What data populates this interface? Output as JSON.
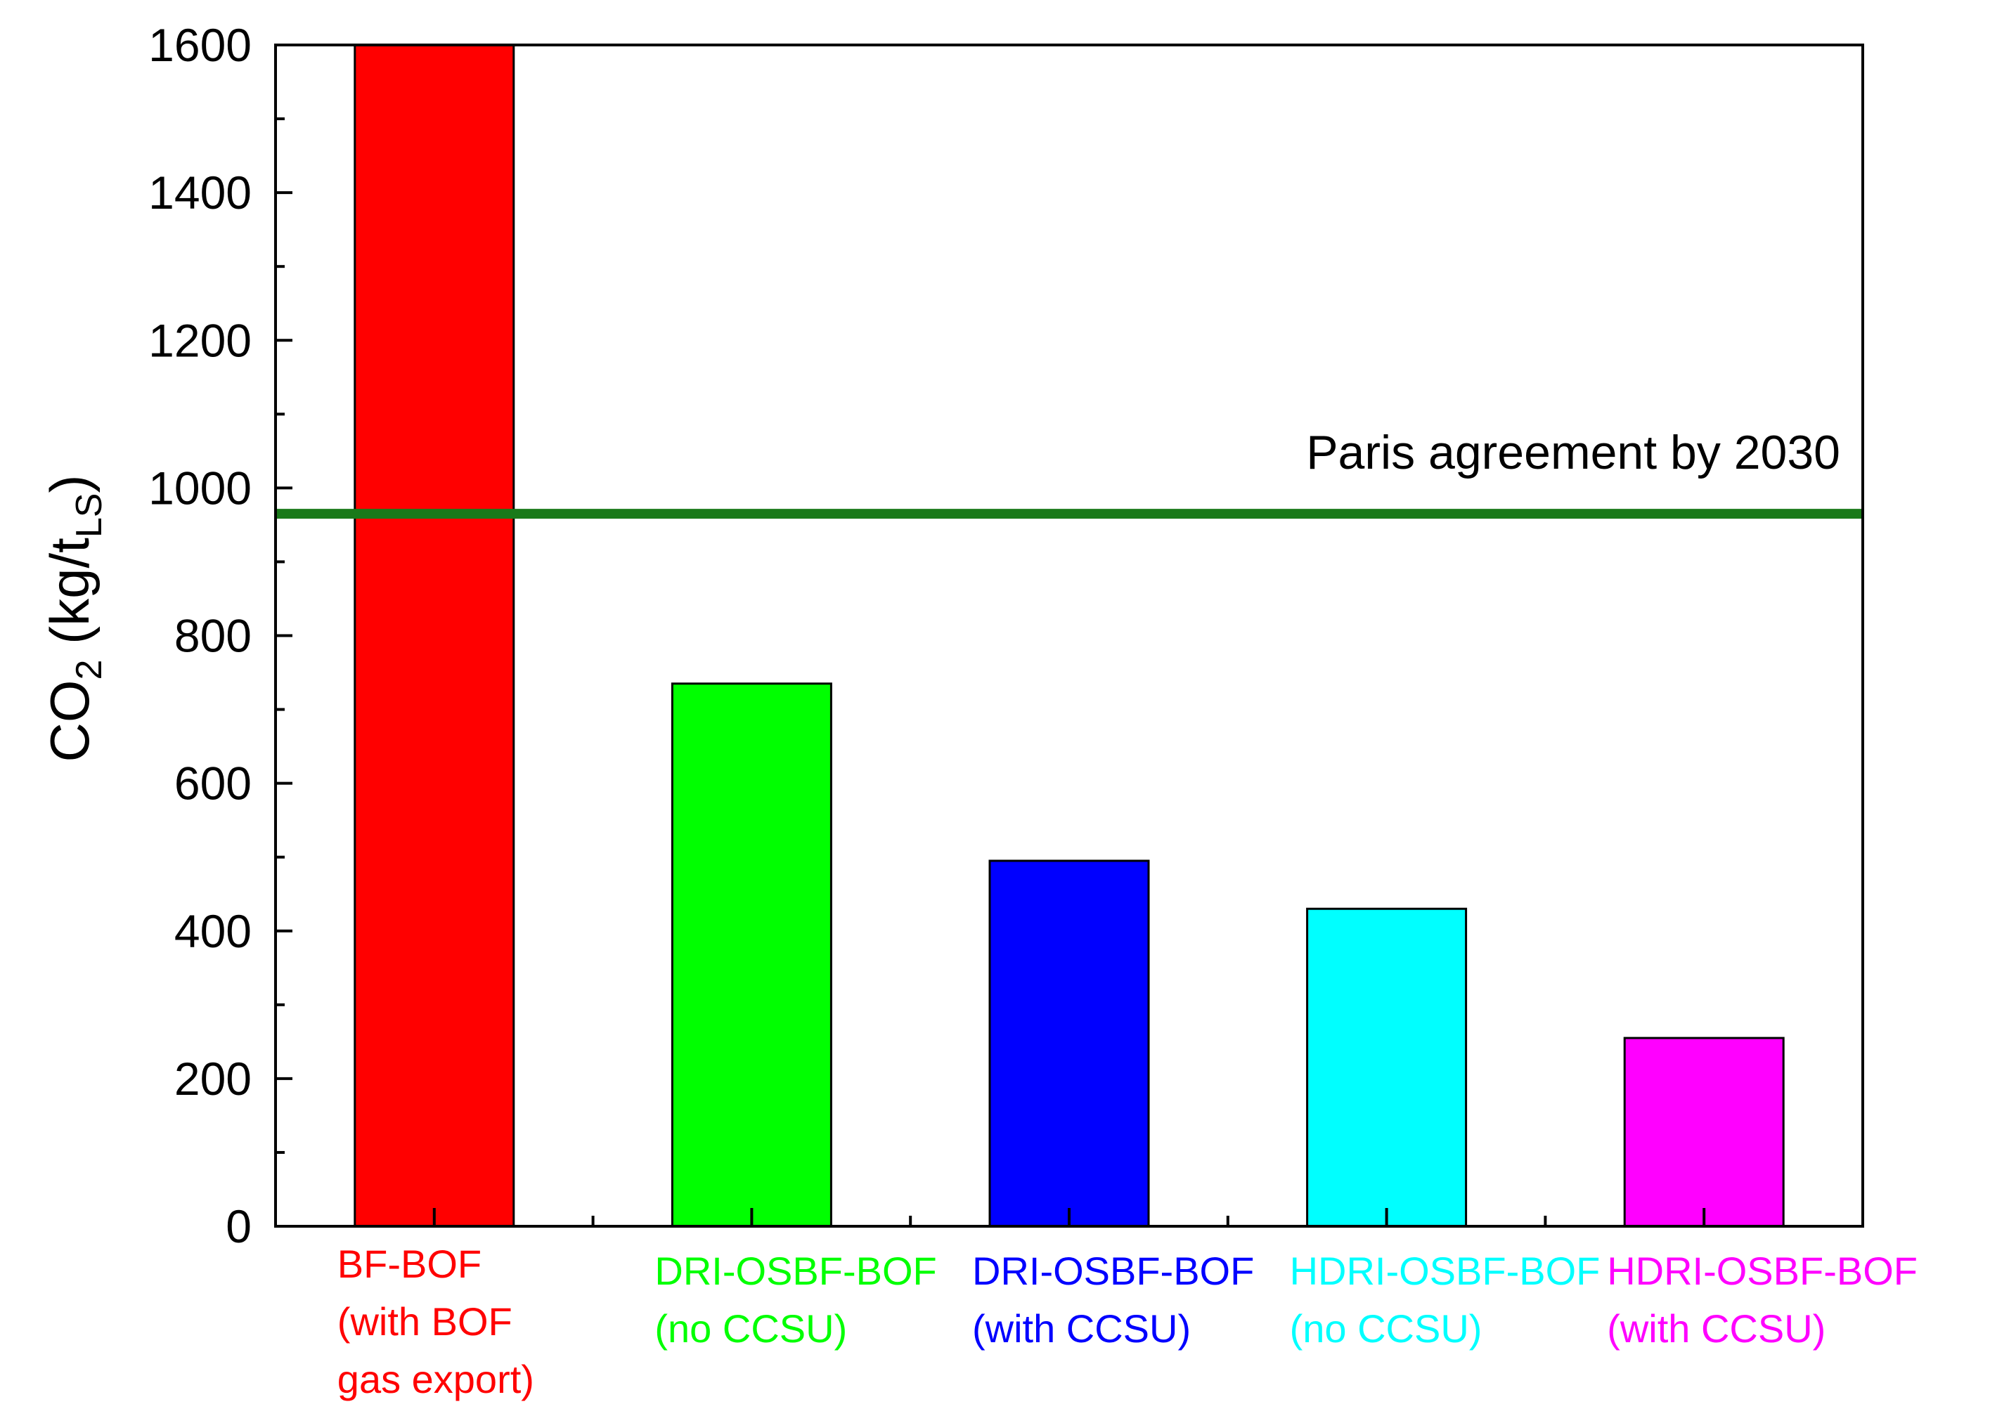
{
  "chart_data": {
    "type": "bar",
    "categories": [
      [
        "BF-BOF",
        "(with BOF",
        "gas export)"
      ],
      [
        "DRI-OSBF-BOF",
        "(no CCSU)"
      ],
      [
        "DRI-OSBF-BOF",
        "(with CCSU)"
      ],
      [
        "HDRI-OSBF-BOF",
        "(no CCSU)"
      ],
      [
        "HDRI-OSBF-BOF",
        "(with CCSU)"
      ]
    ],
    "values": [
      1600,
      735,
      495,
      430,
      255
    ],
    "bar_colors": [
      "#ff0000",
      "#00ff00",
      "#0000ff",
      "#00ffff",
      "#ff00ff"
    ],
    "label_colors": [
      "#ff0000",
      "#00ff00",
      "#0000ff",
      "#00ffff",
      "#ff00ff"
    ],
    "ylabel": {
      "main": "CO",
      "sub1": "2",
      "mid": " (kg/t",
      "sub2": "LS",
      "end": ")"
    },
    "xlabel": "",
    "ylim": [
      0,
      1600
    ],
    "yticks": [
      0,
      200,
      400,
      600,
      800,
      1000,
      1200,
      1400,
      1600
    ],
    "grid": false,
    "reference_line": {
      "value": 965,
      "label": "Paris agreement by 2030",
      "color": "#1a7a1a"
    }
  }
}
